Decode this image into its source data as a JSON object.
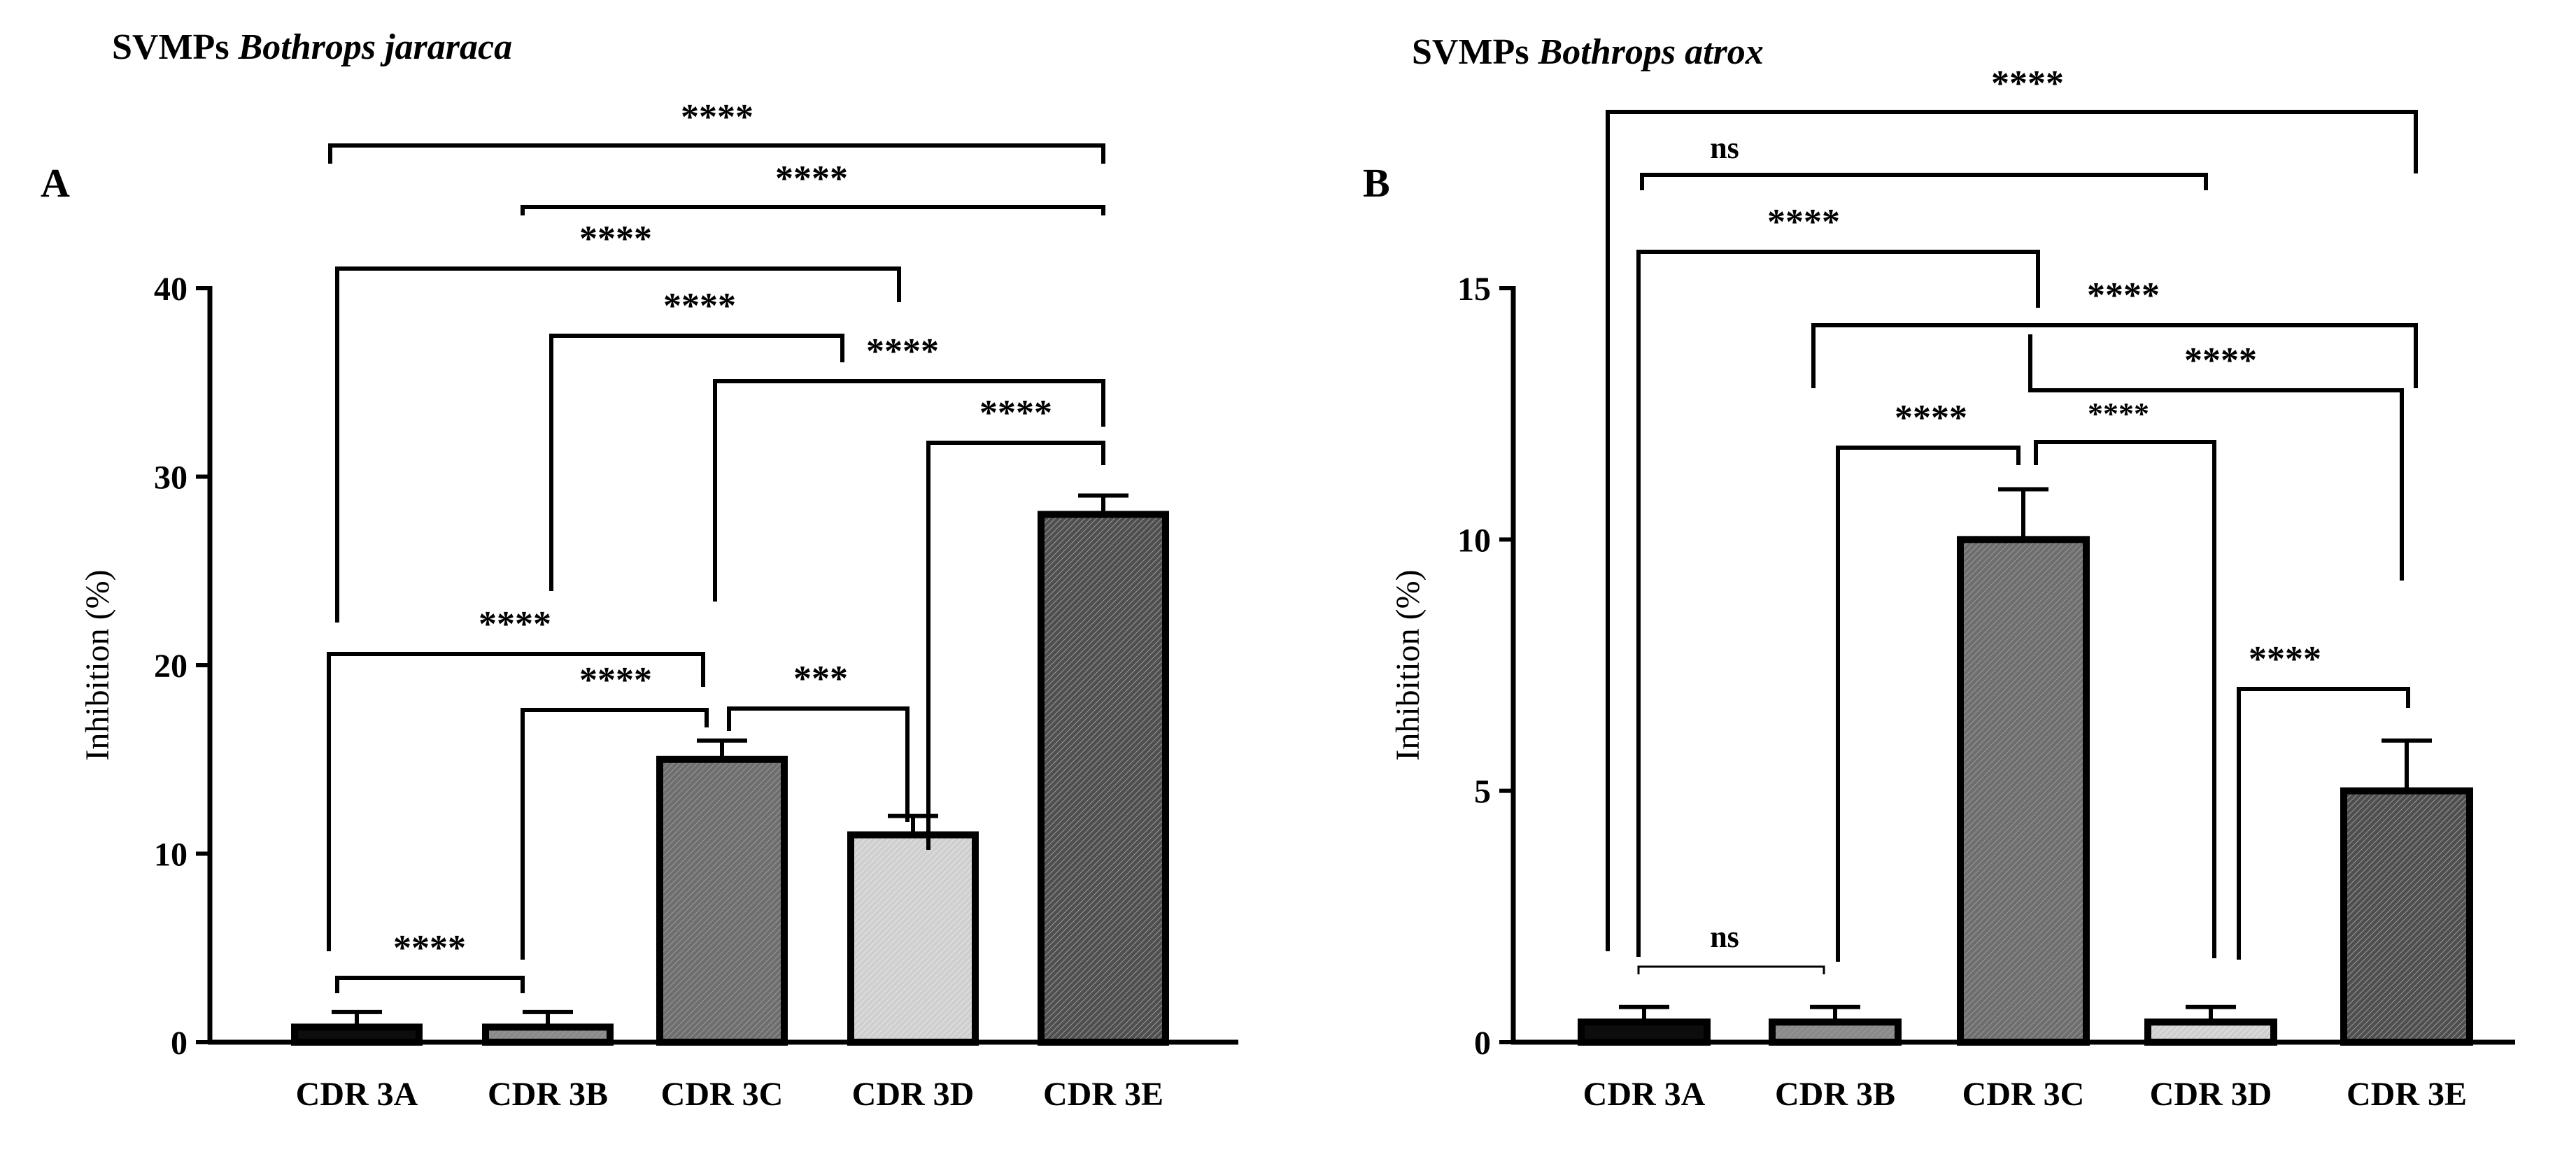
{
  "chart_data": [
    {
      "type": "bar",
      "panel_label": "A",
      "title": "SVMPs",
      "title_italic": "Bothrops jararaca",
      "xlabel": "",
      "ylabel": "Inhibition (%)",
      "ylim": [
        0,
        40
      ],
      "yticks": [
        "0",
        "10",
        "20",
        "30",
        "40"
      ],
      "categories": [
        "CDR 3A",
        "CDR 3B",
        "CDR 3C",
        "CDR 3D",
        "CDR 3E"
      ],
      "values": [
        0.8,
        0.8,
        15,
        11,
        28
      ],
      "errors": [
        0.8,
        0.8,
        1,
        1,
        1
      ],
      "bar_colors": [
        "#0d0d0d",
        "#8a8a8a",
        "#6e6e6e",
        "#cfcfcf",
        "#4f4f4f"
      ],
      "significance": [
        {
          "from": 0,
          "to": 4,
          "label": "****"
        },
        {
          "from": 1,
          "to": 4,
          "label": "****"
        },
        {
          "from": 0,
          "to": 3,
          "label": "****"
        },
        {
          "from": 1,
          "to": 3,
          "label": "****"
        },
        {
          "from": 2,
          "to": 4,
          "label": "****"
        },
        {
          "from": 3,
          "to": 4,
          "label": "****"
        },
        {
          "from": 0,
          "to": 2,
          "label": "****"
        },
        {
          "from": 1,
          "to": 2,
          "label": "****"
        },
        {
          "from": 2,
          "to": 3,
          "label": "***"
        },
        {
          "from": 0,
          "to": 1,
          "label": "****"
        }
      ]
    },
    {
      "type": "bar",
      "panel_label": "B",
      "title": "SVMPs",
      "title_italic": "Bothrops atrox",
      "xlabel": "",
      "ylabel": "Inhibition (%)",
      "ylim": [
        0,
        15
      ],
      "yticks": [
        "0",
        "5",
        "10",
        "15"
      ],
      "categories": [
        "CDR 3A",
        "CDR 3B",
        "CDR 3C",
        "CDR 3D",
        "CDR 3E"
      ],
      "values": [
        0.4,
        0.4,
        10,
        0.4,
        5
      ],
      "errors": [
        0.3,
        0.3,
        1,
        0.3,
        1
      ],
      "bar_colors": [
        "#0d0d0d",
        "#8a8a8a",
        "#6e6e6e",
        "#cfcfcf",
        "#4f4f4f"
      ],
      "significance": [
        {
          "from": 0,
          "to": 4,
          "label": "****"
        },
        {
          "from": 0,
          "to": 3,
          "label": "ns"
        },
        {
          "from": 0,
          "to": 2,
          "label": "****"
        },
        {
          "from": 1,
          "to": 4,
          "label": "****"
        },
        {
          "from": 2,
          "to": 4,
          "label": "****"
        },
        {
          "from": 1,
          "to": 2,
          "label": "****"
        },
        {
          "from": 2,
          "to": 3,
          "label": "****"
        },
        {
          "from": 3,
          "to": 4,
          "label": "****"
        },
        {
          "from": 0,
          "to": 1,
          "label": "ns"
        }
      ]
    }
  ]
}
